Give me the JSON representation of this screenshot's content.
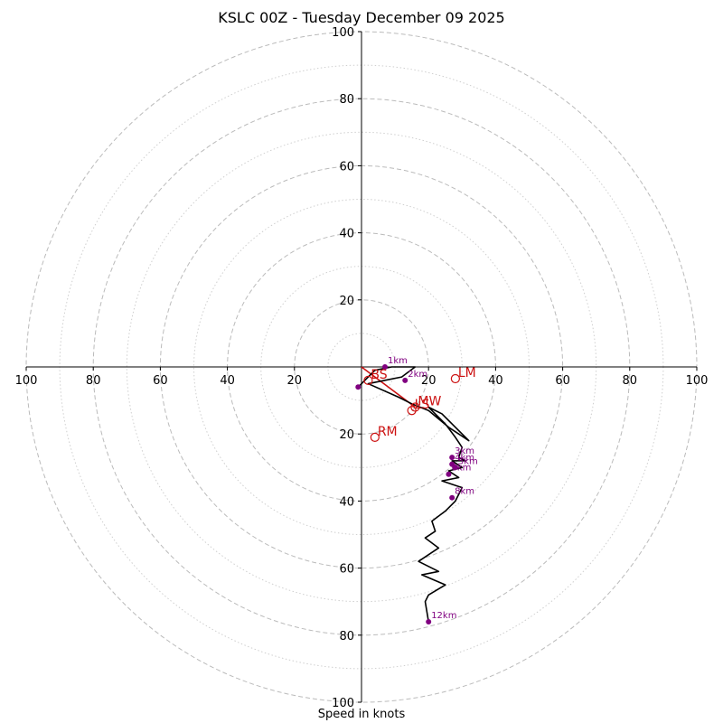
{
  "chart_data": {
    "type": "hodograph",
    "title": "KSLC 00Z - Tuesday December 09 2025",
    "xlabel": "Speed in knots",
    "units": "knots",
    "range": [
      -100,
      100
    ],
    "rings_major": [
      20,
      40,
      60,
      80,
      100
    ],
    "rings_minor": [
      10,
      30,
      50,
      70,
      90
    ],
    "x_ticks": [
      {
        "value": -100,
        "label": "100"
      },
      {
        "value": -80,
        "label": "80"
      },
      {
        "value": -60,
        "label": "60"
      },
      {
        "value": -40,
        "label": "40"
      },
      {
        "value": -20,
        "label": "20"
      },
      {
        "value": 20,
        "label": "20"
      },
      {
        "value": 40,
        "label": "40"
      },
      {
        "value": 60,
        "label": "60"
      },
      {
        "value": 80,
        "label": "80"
      },
      {
        "value": 100,
        "label": "100"
      }
    ],
    "y_ticks": [
      {
        "value": 100,
        "label": "100"
      },
      {
        "value": 80,
        "label": "80"
      },
      {
        "value": 60,
        "label": "60"
      },
      {
        "value": 40,
        "label": "40"
      },
      {
        "value": 20,
        "label": "20"
      },
      {
        "value": -20,
        "label": "20"
      },
      {
        "value": -40,
        "label": "40"
      },
      {
        "value": -60,
        "label": "60"
      },
      {
        "value": -80,
        "label": "80"
      },
      {
        "value": -100,
        "label": "100"
      }
    ],
    "trace": [
      [
        -1,
        -6
      ],
      [
        4,
        -1
      ],
      [
        9,
        0
      ],
      [
        16,
        0
      ],
      [
        12,
        -3
      ],
      [
        7,
        -4
      ],
      [
        2,
        -5
      ],
      [
        11,
        -9
      ],
      [
        15,
        -11
      ],
      [
        20,
        -13
      ],
      [
        26,
        -18
      ],
      [
        32,
        -22
      ],
      [
        24,
        -14
      ],
      [
        20,
        -12
      ],
      [
        25,
        -17
      ],
      [
        28,
        -21
      ],
      [
        30,
        -24
      ],
      [
        29,
        -27
      ],
      [
        31,
        -28
      ],
      [
        27,
        -28
      ],
      [
        30,
        -30
      ],
      [
        26,
        -31
      ],
      [
        29,
        -33
      ],
      [
        24,
        -34
      ],
      [
        27,
        -35
      ],
      [
        30,
        -36
      ],
      [
        28,
        -40
      ],
      [
        25,
        -43
      ],
      [
        21,
        -46
      ],
      [
        22,
        -49
      ],
      [
        19,
        -51
      ],
      [
        23,
        -54
      ],
      [
        17,
        -58
      ],
      [
        23,
        -61
      ],
      [
        18,
        -62
      ],
      [
        25,
        -65
      ],
      [
        20,
        -68
      ],
      [
        19,
        -70
      ],
      [
        20,
        -76
      ]
    ],
    "height_markers": [
      {
        "label": "1km",
        "u": 7,
        "v": 0
      },
      {
        "label": "2km",
        "u": 13,
        "v": -4
      },
      {
        "label": "3km",
        "u": 27,
        "v": -27
      },
      {
        "label": "4km",
        "u": 27,
        "v": -29
      },
      {
        "label": "5km",
        "u": 28,
        "v": -30
      },
      {
        "label": "6km",
        "u": 26,
        "v": -32
      },
      {
        "label": "8km",
        "u": 27,
        "v": -39
      },
      {
        "label": "12km",
        "u": 20,
        "v": -76
      }
    ],
    "storm_motion": [
      {
        "label": "LM",
        "u": 28,
        "v": -3.5
      },
      {
        "label": "RM",
        "u": 4,
        "v": -21
      },
      {
        "label": "MW",
        "u": 16,
        "v": -12
      },
      {
        "label": "LS",
        "u": 15,
        "v": -13
      },
      {
        "label": "BS",
        "u": 2,
        "v": -4
      }
    ],
    "shear_vector": {
      "u_start": 0,
      "v_start": 0,
      "u_end": 16,
      "v_end": -12
    },
    "colors": {
      "trace": "#000000",
      "marker": "#800080",
      "motion": "#cc1111",
      "grid": "#bbbbbb",
      "axes": "#000000"
    }
  }
}
